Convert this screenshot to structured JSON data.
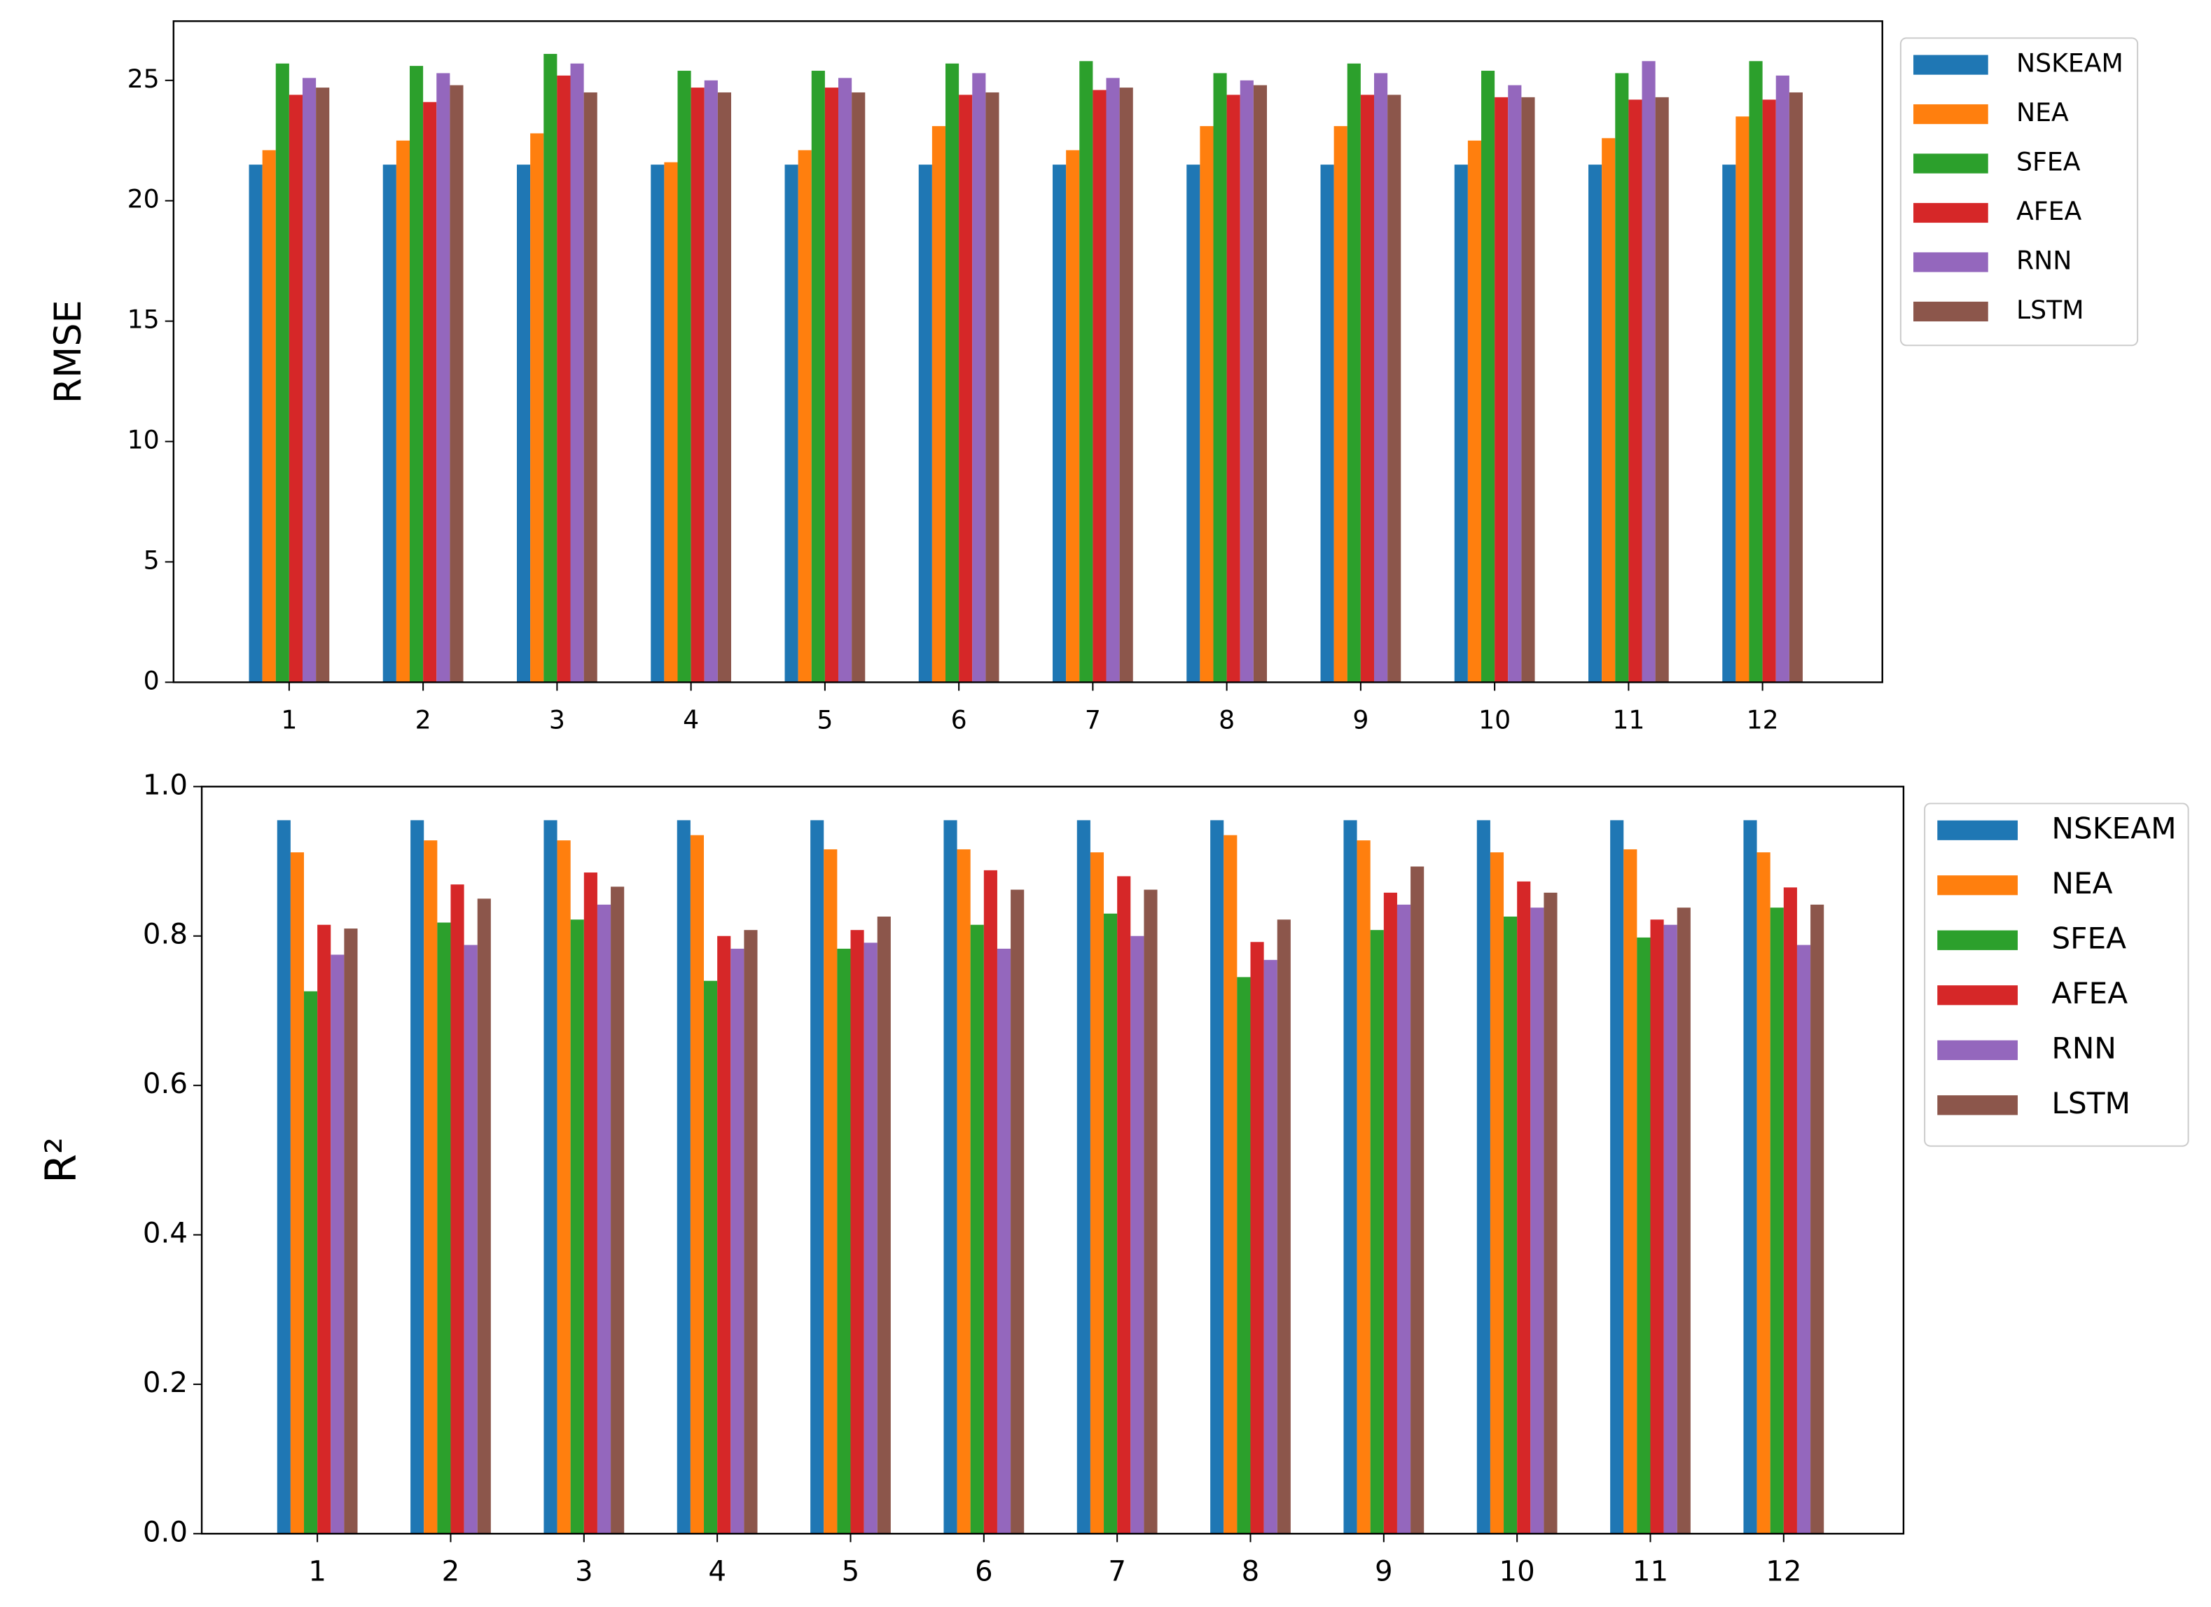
{
  "chart_data": [
    {
      "type": "bar",
      "y_label": "RMSE",
      "categories": [
        "1",
        "2",
        "3",
        "4",
        "5",
        "6",
        "7",
        "8",
        "9",
        "10",
        "11",
        "12"
      ],
      "ylim": [
        0,
        27.46
      ],
      "yticks": [
        0,
        5,
        10,
        15,
        20,
        25
      ],
      "legend": "upper right outside",
      "series": [
        {
          "name": "NSKEAM",
          "color": "#1f77b4",
          "values": [
            21.5,
            21.5,
            21.5,
            21.5,
            21.5,
            21.5,
            21.5,
            21.5,
            21.5,
            21.5,
            21.5,
            21.5
          ]
        },
        {
          "name": "NEA",
          "color": "#ff7f0e",
          "values": [
            22.1,
            22.5,
            22.8,
            21.6,
            22.1,
            23.1,
            22.1,
            23.1,
            23.1,
            22.5,
            22.6,
            23.5
          ]
        },
        {
          "name": "SFEA",
          "color": "#2ca02c",
          "values": [
            25.7,
            25.6,
            26.1,
            25.4,
            25.4,
            25.7,
            25.8,
            25.3,
            25.7,
            25.4,
            25.3,
            25.8
          ]
        },
        {
          "name": "AFEA",
          "color": "#d62728",
          "values": [
            24.4,
            24.1,
            25.2,
            24.7,
            24.7,
            24.4,
            24.6,
            24.4,
            24.4,
            24.3,
            24.2,
            24.2
          ]
        },
        {
          "name": "RNN",
          "color": "#9467bd",
          "values": [
            25.1,
            25.3,
            25.7,
            25.0,
            25.1,
            25.3,
            25.1,
            25.0,
            25.3,
            24.8,
            25.8,
            25.2
          ]
        },
        {
          "name": "LSTM",
          "color": "#8c564b",
          "values": [
            24.7,
            24.8,
            24.5,
            24.5,
            24.5,
            24.5,
            24.7,
            24.8,
            24.4,
            24.3,
            24.3,
            24.5
          ]
        }
      ]
    },
    {
      "type": "bar",
      "y_label": "R²",
      "categories": [
        "1",
        "2",
        "3",
        "4",
        "5",
        "6",
        "7",
        "8",
        "9",
        "10",
        "11",
        "12"
      ],
      "ylim": [
        0,
        1.0
      ],
      "yticks": [
        {
          "value": 0,
          "label": "0.0"
        },
        0.2,
        0.4,
        0.6,
        0.8,
        {
          "value": 1.0,
          "label": "1.0"
        }
      ],
      "legend": "upper right outside",
      "series": [
        {
          "name": "NSKEAM",
          "color": "#1f77b4",
          "values": [
            0.955,
            0.955,
            0.955,
            0.955,
            0.955,
            0.955,
            0.955,
            0.955,
            0.955,
            0.955,
            0.955,
            0.955
          ]
        },
        {
          "name": "NEA",
          "color": "#ff7f0e",
          "values": [
            0.912,
            0.928,
            0.928,
            0.935,
            0.916,
            0.916,
            0.912,
            0.935,
            0.928,
            0.912,
            0.916,
            0.912
          ]
        },
        {
          "name": "SFEA",
          "color": "#2ca02c",
          "values": [
            0.726,
            0.818,
            0.822,
            0.74,
            0.783,
            0.815,
            0.83,
            0.745,
            0.808,
            0.826,
            0.798,
            0.838
          ]
        },
        {
          "name": "AFEA",
          "color": "#d62728",
          "values": [
            0.815,
            0.869,
            0.885,
            0.8,
            0.808,
            0.888,
            0.88,
            0.792,
            0.858,
            0.873,
            0.822,
            0.865
          ]
        },
        {
          "name": "RNN",
          "color": "#9467bd",
          "values": [
            0.775,
            0.788,
            0.842,
            0.783,
            0.791,
            0.783,
            0.8,
            0.768,
            0.842,
            0.838,
            0.815,
            0.788
          ]
        },
        {
          "name": "LSTM",
          "color": "#8c564b",
          "values": [
            0.81,
            0.85,
            0.866,
            0.808,
            0.826,
            0.862,
            0.862,
            0.822,
            0.893,
            0.858,
            0.838,
            0.842
          ]
        }
      ]
    }
  ]
}
